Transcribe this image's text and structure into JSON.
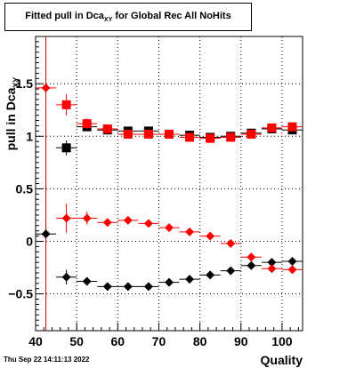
{
  "title": {
    "main": "Fitted pull in Dca",
    "sub": "XY",
    "rest": "for Global Rec All NoHits"
  },
  "footer": {
    "date": "Thu Sep 22 14:11:13 2022"
  },
  "chart_data": {
    "type": "scatter",
    "xlabel": "Quality",
    "ylabel": "pull in Dca",
    "ylabel_sub": "XY",
    "xlim": [
      40,
      105
    ],
    "ylim": [
      -0.85,
      1.95
    ],
    "x_ticks": [
      40,
      50,
      60,
      70,
      80,
      90,
      100
    ],
    "y_ticks": [
      -0.5,
      0,
      0.5,
      1,
      1.5
    ],
    "y_tick_labels": [
      "−0.5",
      "0",
      "0.5",
      "1",
      "1.5"
    ],
    "grid": true,
    "vertical_marker_x": 42.5,
    "series": [
      {
        "marker": "square",
        "color": "#000000",
        "points": [
          {
            "x": 47.5,
            "y": 0.89,
            "yerr": 0.07
          },
          {
            "x": 52.5,
            "y": 1.09,
            "yerr": 0.04
          },
          {
            "x": 57.5,
            "y": 1.06,
            "yerr": 0.02
          },
          {
            "x": 62.5,
            "y": 1.05,
            "yerr": 0.02
          },
          {
            "x": 67.5,
            "y": 1.05,
            "yerr": 0.02
          },
          {
            "x": 72.5,
            "y": 1.02,
            "yerr": 0.02
          },
          {
            "x": 77.5,
            "y": 1.01,
            "yerr": 0.02
          },
          {
            "x": 82.5,
            "y": 0.99,
            "yerr": 0.02
          },
          {
            "x": 87.5,
            "y": 1.0,
            "yerr": 0.02
          },
          {
            "x": 92.5,
            "y": 1.03,
            "yerr": 0.02
          },
          {
            "x": 97.5,
            "y": 1.07,
            "yerr": 0.02
          },
          {
            "x": 102.5,
            "y": 1.06,
            "yerr": 0.02
          }
        ]
      },
      {
        "marker": "square",
        "color": "#ff0000",
        "points": [
          {
            "x": 47.5,
            "y": 1.3,
            "yerr": 0.1
          },
          {
            "x": 52.5,
            "y": 1.12,
            "yerr": 0.05
          },
          {
            "x": 57.5,
            "y": 1.07,
            "yerr": 0.03
          },
          {
            "x": 62.5,
            "y": 1.02,
            "yerr": 0.02
          },
          {
            "x": 67.5,
            "y": 1.02,
            "yerr": 0.02
          },
          {
            "x": 72.5,
            "y": 1.02,
            "yerr": 0.02
          },
          {
            "x": 77.5,
            "y": 0.99,
            "yerr": 0.02
          },
          {
            "x": 82.5,
            "y": 0.98,
            "yerr": 0.02
          },
          {
            "x": 87.5,
            "y": 0.99,
            "yerr": 0.02
          },
          {
            "x": 92.5,
            "y": 1.02,
            "yerr": 0.02
          },
          {
            "x": 97.5,
            "y": 1.08,
            "yerr": 0.02
          },
          {
            "x": 102.5,
            "y": 1.09,
            "yerr": 0.02
          }
        ]
      },
      {
        "marker": "diamond",
        "color": "#000000",
        "points": [
          {
            "x": 42.5,
            "y": 0.07,
            "yerr": 0.0
          },
          {
            "x": 47.5,
            "y": -0.34,
            "yerr": 0.07
          },
          {
            "x": 52.5,
            "y": -0.38,
            "yerr": 0.04
          },
          {
            "x": 57.5,
            "y": -0.43,
            "yerr": 0.02
          },
          {
            "x": 62.5,
            "y": -0.43,
            "yerr": 0.02
          },
          {
            "x": 67.5,
            "y": -0.43,
            "yerr": 0.02
          },
          {
            "x": 72.5,
            "y": -0.39,
            "yerr": 0.02
          },
          {
            "x": 77.5,
            "y": -0.36,
            "yerr": 0.02
          },
          {
            "x": 82.5,
            "y": -0.32,
            "yerr": 0.02
          },
          {
            "x": 87.5,
            "y": -0.28,
            "yerr": 0.02
          },
          {
            "x": 92.5,
            "y": -0.23,
            "yerr": 0.02
          },
          {
            "x": 97.5,
            "y": -0.2,
            "yerr": 0.02
          },
          {
            "x": 102.5,
            "y": -0.19,
            "yerr": 0.02
          }
        ]
      },
      {
        "marker": "diamond",
        "color": "#ff0000",
        "points": [
          {
            "x": 42.5,
            "y": 1.46,
            "yerr": 0.0
          },
          {
            "x": 47.5,
            "y": 0.22,
            "yerr": 0.14
          },
          {
            "x": 52.5,
            "y": 0.22,
            "yerr": 0.06
          },
          {
            "x": 57.5,
            "y": 0.18,
            "yerr": 0.03
          },
          {
            "x": 62.5,
            "y": 0.2,
            "yerr": 0.02
          },
          {
            "x": 67.5,
            "y": 0.17,
            "yerr": 0.02
          },
          {
            "x": 72.5,
            "y": 0.13,
            "yerr": 0.02
          },
          {
            "x": 77.5,
            "y": 0.09,
            "yerr": 0.02
          },
          {
            "x": 82.5,
            "y": 0.05,
            "yerr": 0.02
          },
          {
            "x": 87.5,
            "y": -0.02,
            "yerr": 0.02
          },
          {
            "x": 92.5,
            "y": -0.15,
            "yerr": 0.02
          },
          {
            "x": 97.5,
            "y": -0.26,
            "yerr": 0.02
          },
          {
            "x": 102.5,
            "y": -0.27,
            "yerr": 0.02
          }
        ]
      }
    ]
  }
}
